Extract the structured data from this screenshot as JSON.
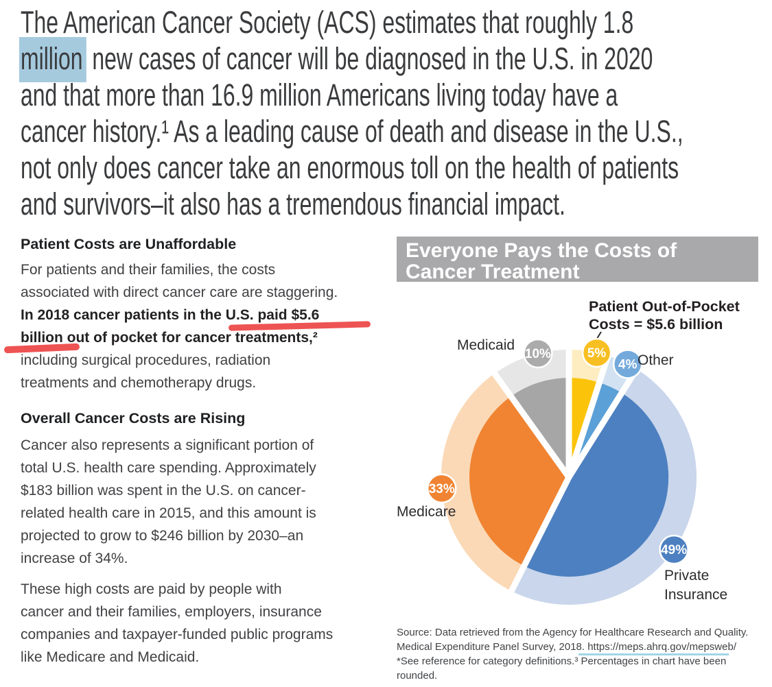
{
  "colors": {
    "highlight": "#a5cade",
    "marker_red": "#ee5353",
    "title_bar_bg": "#a9a9ab",
    "url_underline": "#a2d5e6"
  },
  "intro": {
    "line1": "The American Cancer Society (ACS) estimates that roughly 1.8",
    "line2_highlight": "million",
    "line2_rest": " new cases of cancer will be diagnosed in the U.S. in 2020",
    "line3": "and that more than 16.9 million Americans living today have a",
    "line4": "cancer history.¹ As a leading cause of death and disease in the U.S.,",
    "line5": "not only does cancer take an enormous toll on the health of patients",
    "line6": "and survivors–it also has a tremendous financial impact."
  },
  "left": {
    "section1": {
      "heading": "Patient Costs are Unaffordable",
      "lines": [
        "For patients and their families, the costs",
        "associated with direct cancer care are staggering.",
        "In 2018 cancer patients in the U.S. paid $5.6",
        "billion out of pocket for cancer treatments,²",
        "including surgical procedures, radiation",
        "treatments and chemotherapy drugs."
      ]
    },
    "section2": {
      "heading": "Overall Cancer Costs are Rising",
      "lines": [
        "Cancer also represents a significant portion of",
        "total U.S. health care spending. Approximately",
        "$183 billion was spent in the U.S. on cancer-",
        "related health care in 2015, and this amount is",
        "projected to grow to $246 billion by 2030–an",
        "increase of 34%."
      ]
    },
    "section3": {
      "lines": [
        "These high costs are paid by people with",
        "cancer and their families, employers, insurance",
        "companies and taxpayer-funded public programs",
        "like Medicare and Medicaid."
      ]
    }
  },
  "chart": {
    "title_line1": "Everyone Pays the Costs of",
    "title_line2": "Cancer Treatment",
    "annotation_line1": "Patient Out-of-Pocket",
    "annotation_line2": "Costs = $5.6 billion",
    "labels": {
      "medicaid": "Medicaid",
      "other": "Other",
      "medicare": "Medicare",
      "private_line1": "Private",
      "private_line2": "Insurance"
    },
    "source": {
      "line1": "Source: Data retrieved from the Agency for Healthcare Research and Quality.",
      "line2_prefix": "Medical Expenditure Panel Survey, 2018. ",
      "line2_url": "https://meps.ahrq.gov/mepsweb/",
      "line3": "*See reference for category definitions.³ Percentages in chart have been",
      "line4": "rounded."
    }
  },
  "chart_data": {
    "type": "pie",
    "title": "Everyone Pays the Costs of Cancer Treatment",
    "start_angle_deg": 0,
    "direction": "clockwise",
    "note": "Percentages in chart have been rounded; patient out-of-pocket costs = $5.6 billion",
    "segments": [
      {
        "label": "Patient Out-of-Pocket",
        "value": 5,
        "display": "5%",
        "color": "#fcc30b",
        "light_color": "#fdedc1",
        "badge_color": "#f8bf22"
      },
      {
        "label": "Other",
        "value": 4,
        "display": "4%",
        "color": "#5ba0d6",
        "light_color": "#d3e2f2",
        "badge_color": "#74aadb"
      },
      {
        "label": "Private Insurance",
        "value": 49,
        "display": "49%",
        "color": "#4d80c0",
        "light_color": "#c9d6ec",
        "badge_color": "#4d80c0"
      },
      {
        "label": "Medicare",
        "value": 33,
        "display": "33%",
        "color": "#f08432",
        "light_color": "#fbd9b6",
        "badge_color": "#f08432"
      },
      {
        "label": "Medicaid",
        "value": 10,
        "display": "10%",
        "color": "#a6a6a6",
        "light_color": "#e6e6e7",
        "badge_color": "#ababab"
      }
    ]
  }
}
